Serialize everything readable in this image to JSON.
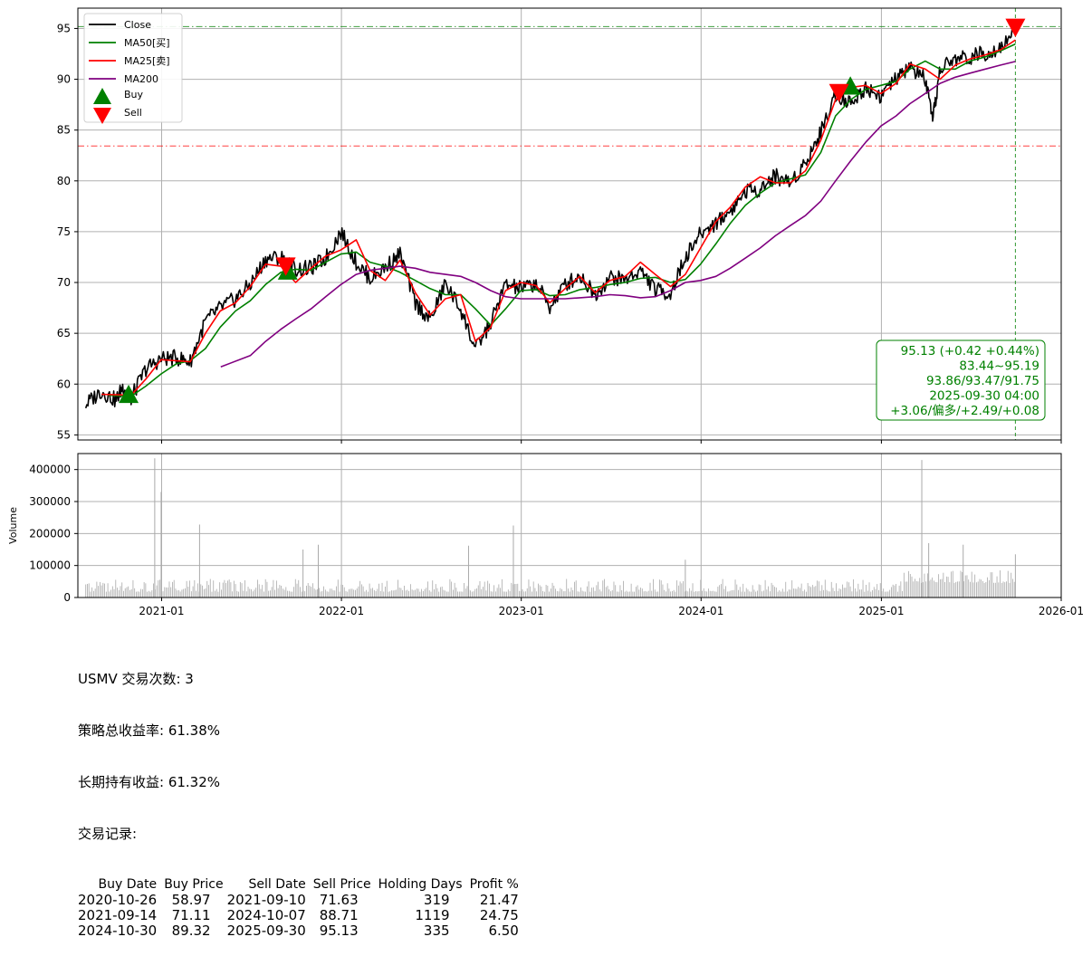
{
  "chart_data": [
    {
      "type": "line",
      "panel": "price",
      "ylim": [
        54.5,
        97
      ],
      "yticks": [
        55,
        60,
        65,
        70,
        75,
        80,
        85,
        90,
        95
      ],
      "grid": true,
      "legend_placement": "top-left",
      "x_start": "2020-07-15",
      "x_end": "2026-01-01",
      "series": [
        {
          "name": "Close",
          "color": "#000000",
          "style": "line",
          "x": [
            "2020-07-31",
            "2020-08-31",
            "2020-09-30",
            "2020-10-15",
            "2020-10-31",
            "2020-11-30",
            "2020-12-31",
            "2021-01-31",
            "2021-02-28",
            "2021-03-31",
            "2021-04-30",
            "2021-05-31",
            "2021-06-30",
            "2021-07-31",
            "2021-08-31",
            "2021-09-30",
            "2021-10-31",
            "2021-11-30",
            "2021-12-31",
            "2022-01-31",
            "2022-02-28",
            "2022-03-31",
            "2022-04-30",
            "2022-05-31",
            "2022-06-30",
            "2022-07-31",
            "2022-08-31",
            "2022-09-30",
            "2022-10-31",
            "2022-11-30",
            "2022-12-31",
            "2023-01-31",
            "2023-02-28",
            "2023-03-31",
            "2023-04-30",
            "2023-05-31",
            "2023-06-30",
            "2023-07-31",
            "2023-08-31",
            "2023-09-30",
            "2023-10-31",
            "2023-11-30",
            "2023-12-31",
            "2024-01-31",
            "2024-02-29",
            "2024-03-31",
            "2024-04-30",
            "2024-05-31",
            "2024-06-30",
            "2024-07-31",
            "2024-08-31",
            "2024-09-30",
            "2024-10-31",
            "2024-11-30",
            "2024-12-31",
            "2025-01-31",
            "2025-02-28",
            "2025-03-31",
            "2025-04-15",
            "2025-04-30",
            "2025-05-31",
            "2025-06-30",
            "2025-07-31",
            "2025-08-31",
            "2025-09-30"
          ],
          "y": [
            58.0,
            59.3,
            58.4,
            59.8,
            58.6,
            61.5,
            62.5,
            62.6,
            62.2,
            66.2,
            67.5,
            68.4,
            69.8,
            72.3,
            72.5,
            71.3,
            71.4,
            72.4,
            75.0,
            72.0,
            70.4,
            71.5,
            72.8,
            68.0,
            66.3,
            69.9,
            67.4,
            63.4,
            66.0,
            69.8,
            69.4,
            69.9,
            67.6,
            69.8,
            70.7,
            68.8,
            70.5,
            70.3,
            71.2,
            69.3,
            68.9,
            72.5,
            74.8,
            75.9,
            77.0,
            79.0,
            79.2,
            80.5,
            79.8,
            81.8,
            84.8,
            88.6,
            87.6,
            89.2,
            88.4,
            90.0,
            91.2,
            90.0,
            85.8,
            91.0,
            92.0,
            92.2,
            92.6,
            93.2,
            95.13
          ]
        },
        {
          "name": "MA50[买]",
          "color": "#008000",
          "style": "line",
          "x": [
            "2020-09-15",
            "2020-10-31",
            "2020-11-30",
            "2020-12-31",
            "2021-01-31",
            "2021-02-28",
            "2021-03-31",
            "2021-04-30",
            "2021-05-31",
            "2021-06-30",
            "2021-07-31",
            "2021-08-31",
            "2021-09-30",
            "2021-10-31",
            "2021-11-30",
            "2021-12-31",
            "2022-01-31",
            "2022-02-28",
            "2022-03-31",
            "2022-04-30",
            "2022-05-31",
            "2022-06-30",
            "2022-07-31",
            "2022-08-31",
            "2022-09-30",
            "2022-10-31",
            "2022-11-30",
            "2022-12-31",
            "2023-01-31",
            "2023-02-28",
            "2023-03-31",
            "2023-04-30",
            "2023-05-31",
            "2023-06-30",
            "2023-07-31",
            "2023-08-31",
            "2023-09-30",
            "2023-10-31",
            "2023-11-30",
            "2023-12-31",
            "2024-01-31",
            "2024-02-29",
            "2024-03-31",
            "2024-04-30",
            "2024-05-31",
            "2024-06-30",
            "2024-07-31",
            "2024-08-31",
            "2024-09-30",
            "2024-10-31",
            "2024-11-30",
            "2024-12-31",
            "2025-01-31",
            "2025-02-28",
            "2025-03-31",
            "2025-04-30",
            "2025-05-31",
            "2025-06-30",
            "2025-07-31",
            "2025-08-31",
            "2025-09-30"
          ],
          "y": [
            58.9,
            58.8,
            59.8,
            61.0,
            62.0,
            62.3,
            63.5,
            65.6,
            67.2,
            68.2,
            69.8,
            71.0,
            71.3,
            71.2,
            72.0,
            72.8,
            73.0,
            72.0,
            71.6,
            71.0,
            70.2,
            69.4,
            68.8,
            68.8,
            67.4,
            65.8,
            67.4,
            69.2,
            69.3,
            68.7,
            68.8,
            69.3,
            69.5,
            69.8,
            70.0,
            70.4,
            70.5,
            70.0,
            70.3,
            71.8,
            73.8,
            75.8,
            77.6,
            78.8,
            79.8,
            80.2,
            80.6,
            82.8,
            86.4,
            88.0,
            89.0,
            89.4,
            89.8,
            91.0,
            91.8,
            91.0,
            91.0,
            91.8,
            92.2,
            92.8,
            93.47
          ]
        },
        {
          "name": "MA25[卖]",
          "color": "#ff0000",
          "style": "line",
          "x": [
            "2020-09-01",
            "2020-10-31",
            "2020-11-30",
            "2020-12-31",
            "2021-01-31",
            "2021-02-28",
            "2021-03-31",
            "2021-04-30",
            "2021-05-31",
            "2021-06-30",
            "2021-07-31",
            "2021-08-31",
            "2021-09-30",
            "2021-10-31",
            "2021-11-30",
            "2021-12-31",
            "2022-01-31",
            "2022-02-28",
            "2022-03-31",
            "2022-04-30",
            "2022-05-31",
            "2022-06-30",
            "2022-07-31",
            "2022-08-31",
            "2022-09-30",
            "2022-10-31",
            "2022-11-30",
            "2022-12-31",
            "2023-01-31",
            "2023-02-28",
            "2023-03-31",
            "2023-04-30",
            "2023-05-31",
            "2023-06-30",
            "2023-07-31",
            "2023-08-31",
            "2023-09-30",
            "2023-10-31",
            "2023-11-30",
            "2023-12-31",
            "2024-01-31",
            "2024-02-29",
            "2024-03-31",
            "2024-04-30",
            "2024-05-31",
            "2024-06-30",
            "2024-07-31",
            "2024-08-31",
            "2024-09-30",
            "2024-10-31",
            "2024-11-30",
            "2024-12-31",
            "2025-01-31",
            "2025-02-28",
            "2025-03-31",
            "2025-04-30",
            "2025-05-31",
            "2025-06-30",
            "2025-07-31",
            "2025-08-31",
            "2025-09-30"
          ],
          "y": [
            59.0,
            58.9,
            60.5,
            62.4,
            62.3,
            62.2,
            65.0,
            67.2,
            68.0,
            69.6,
            71.8,
            71.6,
            70.0,
            71.4,
            72.6,
            73.2,
            74.2,
            71.2,
            70.2,
            72.2,
            69.0,
            66.8,
            68.4,
            68.8,
            64.2,
            65.6,
            69.2,
            70.0,
            69.7,
            68.0,
            69.4,
            70.6,
            69.0,
            70.2,
            70.6,
            72.0,
            70.8,
            69.6,
            70.8,
            73.4,
            76.0,
            77.4,
            79.4,
            80.4,
            79.8,
            79.8,
            81.0,
            84.0,
            88.0,
            89.2,
            89.4,
            88.6,
            89.6,
            91.5,
            91.0,
            90.0,
            91.4,
            92.0,
            92.4,
            92.9,
            93.86
          ]
        },
        {
          "name": "MA200",
          "color": "#800080",
          "style": "line",
          "x": [
            "2021-05-01",
            "2021-06-30",
            "2021-07-31",
            "2021-08-31",
            "2021-09-30",
            "2021-10-31",
            "2021-11-30",
            "2021-12-31",
            "2022-01-31",
            "2022-02-28",
            "2022-03-31",
            "2022-04-30",
            "2022-05-31",
            "2022-06-30",
            "2022-07-31",
            "2022-08-31",
            "2022-09-30",
            "2022-10-31",
            "2022-11-30",
            "2022-12-31",
            "2023-01-31",
            "2023-02-28",
            "2023-03-31",
            "2023-04-30",
            "2023-05-31",
            "2023-06-30",
            "2023-07-31",
            "2023-08-31",
            "2023-09-30",
            "2023-10-31",
            "2023-11-30",
            "2023-12-31",
            "2024-01-31",
            "2024-02-29",
            "2024-03-31",
            "2024-04-30",
            "2024-05-31",
            "2024-06-30",
            "2024-07-31",
            "2024-08-31",
            "2024-09-30",
            "2024-10-31",
            "2024-11-30",
            "2024-12-31",
            "2025-01-31",
            "2025-02-28",
            "2025-03-31",
            "2025-04-30",
            "2025-05-31",
            "2025-06-30",
            "2025-07-31",
            "2025-08-31",
            "2025-09-30"
          ],
          "y": [
            61.7,
            62.8,
            64.2,
            65.4,
            66.4,
            67.4,
            68.6,
            69.8,
            70.8,
            71.2,
            71.4,
            71.6,
            71.4,
            71.0,
            70.8,
            70.6,
            70.0,
            69.2,
            68.6,
            68.4,
            68.4,
            68.4,
            68.4,
            68.5,
            68.6,
            68.8,
            68.7,
            68.5,
            68.6,
            69.2,
            70.0,
            70.2,
            70.6,
            71.4,
            72.4,
            73.4,
            74.6,
            75.6,
            76.6,
            78.0,
            80.0,
            82.0,
            83.8,
            85.4,
            86.4,
            87.6,
            88.6,
            89.6,
            90.2,
            90.6,
            91.0,
            91.4,
            91.75
          ]
        }
      ],
      "markers": [
        {
          "name": "Buy",
          "color": "#008000",
          "shape": "triangle-up",
          "points": [
            {
              "date": "2020-10-26",
              "price": 58.97
            },
            {
              "date": "2021-09-14",
              "price": 71.11
            },
            {
              "date": "2024-10-30",
              "price": 89.32
            }
          ]
        },
        {
          "name": "Sell",
          "color": "#ff0000",
          "shape": "triangle-down",
          "points": [
            {
              "date": "2021-09-10",
              "price": 71.63
            },
            {
              "date": "2024-10-07",
              "price": 88.71
            },
            {
              "date": "2025-09-30",
              "price": 95.13
            }
          ]
        }
      ],
      "hlines": [
        {
          "y": 95.19,
          "color": "#008000",
          "style": "dashdot"
        },
        {
          "y": 83.44,
          "color": "#ff0000",
          "style": "dashdot"
        }
      ],
      "vline": {
        "x": "2025-09-30",
        "color": "#008000",
        "style": "dashed"
      },
      "info_box": {
        "lines": [
          "95.13 (+0.42 +0.44%)",
          "83.44~95.19",
          "93.86/93.47/91.75",
          "2025-09-30 04:00",
          "+3.06/偏多/+2.49/+0.08"
        ],
        "color": "#008000"
      }
    },
    {
      "type": "bar",
      "panel": "volume",
      "ylabel": "Volume",
      "ylim": [
        0,
        450000
      ],
      "yticks": [
        0,
        100000,
        200000,
        300000,
        400000
      ],
      "grid": true,
      "color": "#a9a9a9",
      "x_tick_labels": [
        "2021-01",
        "2022-01",
        "2023-01",
        "2024-01",
        "2025-01",
        "2026-01"
      ],
      "peaks": [
        {
          "date": "2020-12-18",
          "value": 435000
        },
        {
          "date": "2020-12-31",
          "value": 330000
        },
        {
          "date": "2021-03-19",
          "value": 228000
        },
        {
          "date": "2022-12-16",
          "value": 225000
        },
        {
          "date": "2022-09-16",
          "value": 162000
        },
        {
          "date": "2021-11-15",
          "value": 165000
        },
        {
          "date": "2021-10-15",
          "value": 150000
        },
        {
          "date": "2025-03-24",
          "value": 430000
        },
        {
          "date": "2025-04-07",
          "value": 170000
        },
        {
          "date": "2025-06-16",
          "value": 165000
        },
        {
          "date": "2025-09-30",
          "value": 135000
        },
        {
          "date": "2023-11-30",
          "value": 118000
        }
      ]
    }
  ],
  "summary": {
    "line1": "USMV 交易次数: 3",
    "line2": "策略总收益率: 61.38%",
    "line3": "长期持有收益: 61.32%",
    "line4": "交易记录:",
    "columns": [
      "Buy Date",
      "Buy Price",
      "Sell Date",
      "Sell Price",
      "Holding Days",
      "Profit %"
    ],
    "trades": [
      [
        "2020-10-26",
        "58.97",
        "2021-09-10",
        "71.63",
        "319",
        "21.47"
      ],
      [
        "2021-09-14",
        "71.11",
        "2024-10-07",
        "88.71",
        "1119",
        "24.75"
      ],
      [
        "2024-10-30",
        "89.32",
        "2025-09-30",
        "95.13",
        "335",
        "6.50"
      ]
    ]
  }
}
